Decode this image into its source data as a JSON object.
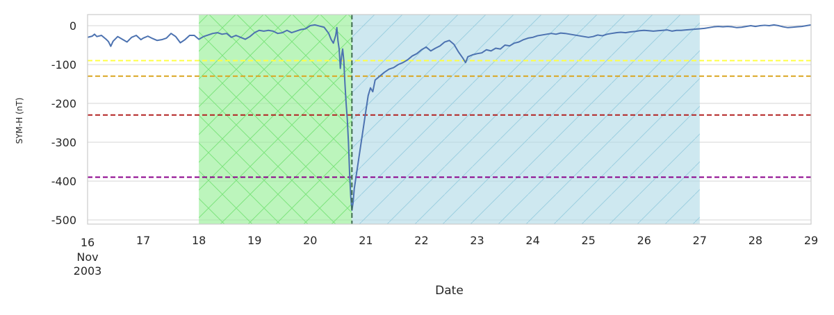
{
  "chart_data": {
    "type": "line",
    "title": "",
    "xlabel": "Date",
    "ylabel": "SYM-H (nT)",
    "x_range": [
      "2003-11-16",
      "2003-11-29"
    ],
    "ylim": [
      -512,
      28
    ],
    "grid": true,
    "x_ticks": [
      {
        "date": "2003-11-16",
        "label": "16",
        "sub": [
          "Nov",
          "2003"
        ]
      },
      {
        "date": "2003-11-17",
        "label": "17"
      },
      {
        "date": "2003-11-18",
        "label": "18"
      },
      {
        "date": "2003-11-19",
        "label": "19"
      },
      {
        "date": "2003-11-20",
        "label": "20"
      },
      {
        "date": "2003-11-21",
        "label": "21"
      },
      {
        "date": "2003-11-22",
        "label": "22"
      },
      {
        "date": "2003-11-23",
        "label": "23"
      },
      {
        "date": "2003-11-24",
        "label": "24"
      },
      {
        "date": "2003-11-25",
        "label": "25"
      },
      {
        "date": "2003-11-26",
        "label": "26"
      },
      {
        "date": "2003-11-27",
        "label": "27"
      },
      {
        "date": "2003-11-28",
        "label": "28"
      },
      {
        "date": "2003-11-29",
        "label": "29"
      }
    ],
    "y_ticks": [
      {
        "value": 0,
        "label": "0"
      },
      {
        "value": -100,
        "label": "-100"
      },
      {
        "value": -200,
        "label": "-200"
      },
      {
        "value": -300,
        "label": "-300"
      },
      {
        "value": -400,
        "label": "-400"
      },
      {
        "value": -500,
        "label": "-500"
      }
    ],
    "shaded_regions": [
      {
        "start": "2003-11-18T00:00",
        "end": "2003-11-20T18:00",
        "color": "#90ee90",
        "opacity": 0.6,
        "hatch": "cross",
        "hatch_color": "#7ee47e"
      },
      {
        "start": "2003-11-20T18:00",
        "end": "2003-11-27T00:00",
        "color": "#add8e6",
        "opacity": 0.6,
        "hatch": "diagonal",
        "hatch_color": "#9ccfe0"
      }
    ],
    "vertical_lines": [
      {
        "x": "2003-11-20T18:00",
        "color": "#3f6b4f",
        "style": "dashed"
      }
    ],
    "threshold_lines": [
      {
        "y": -90,
        "color": "#ffff44"
      },
      {
        "y": -130,
        "color": "#daa520"
      },
      {
        "y": -230,
        "color": "#b22222"
      },
      {
        "y": -390,
        "color": "#8b008b"
      }
    ],
    "series": [
      {
        "color": "#4c72b0",
        "points": [
          [
            "2003-11-16T00:00",
            -30
          ],
          [
            "2003-11-16T02:00",
            -27
          ],
          [
            "2003-11-16T03:00",
            -22
          ],
          [
            "2003-11-16T04:00",
            -28
          ],
          [
            "2003-11-16T06:00",
            -25
          ],
          [
            "2003-11-16T08:00",
            -35
          ],
          [
            "2003-11-16T09:00",
            -41
          ],
          [
            "2003-11-16T10:00",
            -53
          ],
          [
            "2003-11-16T11:00",
            -40
          ],
          [
            "2003-11-16T13:00",
            -28
          ],
          [
            "2003-11-16T15:00",
            -35
          ],
          [
            "2003-11-16T17:00",
            -42
          ],
          [
            "2003-11-16T19:00",
            -30
          ],
          [
            "2003-11-16T21:00",
            -25
          ],
          [
            "2003-11-16T23:00",
            -36
          ],
          [
            "2003-11-17T00:00",
            -32
          ],
          [
            "2003-11-17T02:00",
            -27
          ],
          [
            "2003-11-17T04:00",
            -33
          ],
          [
            "2003-11-17T06:00",
            -38
          ],
          [
            "2003-11-17T08:00",
            -36
          ],
          [
            "2003-11-17T10:00",
            -32
          ],
          [
            "2003-11-17T12:00",
            -20
          ],
          [
            "2003-11-17T14:00",
            -28
          ],
          [
            "2003-11-17T16:00",
            -44
          ],
          [
            "2003-11-17T18:00",
            -36
          ],
          [
            "2003-11-17T20:00",
            -25
          ],
          [
            "2003-11-17T22:00",
            -25
          ],
          [
            "2003-11-18T00:00",
            -35
          ],
          [
            "2003-11-18T02:00",
            -28
          ],
          [
            "2003-11-18T04:00",
            -24
          ],
          [
            "2003-11-18T06:00",
            -20
          ],
          [
            "2003-11-18T08:00",
            -18
          ],
          [
            "2003-11-18T10:00",
            -22
          ],
          [
            "2003-11-18T12:00",
            -20
          ],
          [
            "2003-11-18T14:00",
            -30
          ],
          [
            "2003-11-18T16:00",
            -25
          ],
          [
            "2003-11-18T18:00",
            -30
          ],
          [
            "2003-11-18T20:00",
            -35
          ],
          [
            "2003-11-18T22:00",
            -28
          ],
          [
            "2003-11-19T00:00",
            -18
          ],
          [
            "2003-11-19T02:00",
            -12
          ],
          [
            "2003-11-19T04:00",
            -14
          ],
          [
            "2003-11-19T06:00",
            -12
          ],
          [
            "2003-11-19T08:00",
            -14
          ],
          [
            "2003-11-19T10:00",
            -20
          ],
          [
            "2003-11-19T12:00",
            -18
          ],
          [
            "2003-11-19T14:00",
            -12
          ],
          [
            "2003-11-19T16:00",
            -18
          ],
          [
            "2003-11-19T18:00",
            -14
          ],
          [
            "2003-11-19T20:00",
            -10
          ],
          [
            "2003-11-19T22:00",
            -8
          ],
          [
            "2003-11-20T00:00",
            0
          ],
          [
            "2003-11-20T02:00",
            2
          ],
          [
            "2003-11-20T04:00",
            -1
          ],
          [
            "2003-11-20T06:00",
            -4
          ],
          [
            "2003-11-20T08:00",
            -20
          ],
          [
            "2003-11-20T09:00",
            -35
          ],
          [
            "2003-11-20T10:00",
            -45
          ],
          [
            "2003-11-20T11:00",
            -25
          ],
          [
            "2003-11-20T11:30",
            -5
          ],
          [
            "2003-11-20T12:00",
            -40
          ],
          [
            "2003-11-20T12:30",
            -60
          ],
          [
            "2003-11-20T13:00",
            -110
          ],
          [
            "2003-11-20T13:30",
            -80
          ],
          [
            "2003-11-20T14:00",
            -60
          ],
          [
            "2003-11-20T14:30",
            -90
          ],
          [
            "2003-11-20T15:00",
            -150
          ],
          [
            "2003-11-20T15:30",
            -200
          ],
          [
            "2003-11-20T16:00",
            -240
          ],
          [
            "2003-11-20T16:30",
            -300
          ],
          [
            "2003-11-20T17:00",
            -380
          ],
          [
            "2003-11-20T17:30",
            -440
          ],
          [
            "2003-11-20T18:00",
            -475
          ],
          [
            "2003-11-20T18:30",
            -455
          ],
          [
            "2003-11-20T19:00",
            -420
          ],
          [
            "2003-11-20T19:30",
            -400
          ],
          [
            "2003-11-20T20:00",
            -380
          ],
          [
            "2003-11-20T21:00",
            -340
          ],
          [
            "2003-11-20T22:00",
            -300
          ],
          [
            "2003-11-20T23:00",
            -260
          ],
          [
            "2003-11-21T00:00",
            -220
          ],
          [
            "2003-11-21T01:00",
            -180
          ],
          [
            "2003-11-21T02:00",
            -160
          ],
          [
            "2003-11-21T03:00",
            -170
          ],
          [
            "2003-11-21T04:00",
            -140
          ],
          [
            "2003-11-21T06:00",
            -130
          ],
          [
            "2003-11-21T08:00",
            -120
          ],
          [
            "2003-11-21T10:00",
            -112
          ],
          [
            "2003-11-21T12:00",
            -108
          ],
          [
            "2003-11-21T14:00",
            -100
          ],
          [
            "2003-11-21T16:00",
            -95
          ],
          [
            "2003-11-21T18:00",
            -88
          ],
          [
            "2003-11-21T20:00",
            -78
          ],
          [
            "2003-11-21T22:00",
            -72
          ],
          [
            "2003-11-22T00:00",
            -62
          ],
          [
            "2003-11-22T02:00",
            -55
          ],
          [
            "2003-11-22T04:00",
            -65
          ],
          [
            "2003-11-22T06:00",
            -58
          ],
          [
            "2003-11-22T08:00",
            -52
          ],
          [
            "2003-11-22T10:00",
            -42
          ],
          [
            "2003-11-22T12:00",
            -38
          ],
          [
            "2003-11-22T14:00",
            -48
          ],
          [
            "2003-11-22T16:00",
            -68
          ],
          [
            "2003-11-22T18:00",
            -85
          ],
          [
            "2003-11-22T19:00",
            -95
          ],
          [
            "2003-11-22T20:00",
            -80
          ],
          [
            "2003-11-22T22:00",
            -75
          ],
          [
            "2003-11-23T00:00",
            -72
          ],
          [
            "2003-11-23T02:00",
            -70
          ],
          [
            "2003-11-23T04:00",
            -62
          ],
          [
            "2003-11-23T06:00",
            -65
          ],
          [
            "2003-11-23T08:00",
            -58
          ],
          [
            "2003-11-23T10:00",
            -60
          ],
          [
            "2003-11-23T12:00",
            -50
          ],
          [
            "2003-11-23T14:00",
            -52
          ],
          [
            "2003-11-23T16:00",
            -45
          ],
          [
            "2003-11-23T18:00",
            -42
          ],
          [
            "2003-11-23T20:00",
            -36
          ],
          [
            "2003-11-23T22:00",
            -32
          ],
          [
            "2003-11-24T00:00",
            -30
          ],
          [
            "2003-11-24T02:00",
            -26
          ],
          [
            "2003-11-24T04:00",
            -24
          ],
          [
            "2003-11-24T06:00",
            -22
          ],
          [
            "2003-11-24T08:00",
            -20
          ],
          [
            "2003-11-24T10:00",
            -22
          ],
          [
            "2003-11-24T12:00",
            -19
          ],
          [
            "2003-11-24T14:00",
            -20
          ],
          [
            "2003-11-24T16:00",
            -22
          ],
          [
            "2003-11-24T18:00",
            -24
          ],
          [
            "2003-11-24T20:00",
            -26
          ],
          [
            "2003-11-24T22:00",
            -28
          ],
          [
            "2003-11-25T00:00",
            -30
          ],
          [
            "2003-11-25T02:00",
            -28
          ],
          [
            "2003-11-25T04:00",
            -24
          ],
          [
            "2003-11-25T06:00",
            -26
          ],
          [
            "2003-11-25T08:00",
            -22
          ],
          [
            "2003-11-25T10:00",
            -20
          ],
          [
            "2003-11-25T12:00",
            -18
          ],
          [
            "2003-11-25T14:00",
            -17
          ],
          [
            "2003-11-25T16:00",
            -18
          ],
          [
            "2003-11-25T18:00",
            -16
          ],
          [
            "2003-11-25T20:00",
            -15
          ],
          [
            "2003-11-25T22:00",
            -13
          ],
          [
            "2003-11-26T00:00",
            -12
          ],
          [
            "2003-11-26T02:00",
            -13
          ],
          [
            "2003-11-26T04:00",
            -14
          ],
          [
            "2003-11-26T06:00",
            -13
          ],
          [
            "2003-11-26T08:00",
            -12
          ],
          [
            "2003-11-26T10:00",
            -11
          ],
          [
            "2003-11-26T12:00",
            -14
          ],
          [
            "2003-11-26T14:00",
            -12
          ],
          [
            "2003-11-26T16:00",
            -12
          ],
          [
            "2003-11-26T18:00",
            -11
          ],
          [
            "2003-11-26T20:00",
            -10
          ],
          [
            "2003-11-26T22:00",
            -9
          ],
          [
            "2003-11-27T00:00",
            -8
          ],
          [
            "2003-11-27T02:00",
            -7
          ],
          [
            "2003-11-27T04:00",
            -5
          ],
          [
            "2003-11-27T06:00",
            -3
          ],
          [
            "2003-11-27T08:00",
            -2
          ],
          [
            "2003-11-27T10:00",
            -3
          ],
          [
            "2003-11-27T12:00",
            -2
          ],
          [
            "2003-11-27T14:00",
            -3
          ],
          [
            "2003-11-27T16:00",
            -5
          ],
          [
            "2003-11-27T18:00",
            -4
          ],
          [
            "2003-11-27T20:00",
            -2
          ],
          [
            "2003-11-27T22:00",
            0
          ],
          [
            "2003-11-28T00:00",
            -2
          ],
          [
            "2003-11-28T02:00",
            0
          ],
          [
            "2003-11-28T04:00",
            1
          ],
          [
            "2003-11-28T06:00",
            0
          ],
          [
            "2003-11-28T08:00",
            2
          ],
          [
            "2003-11-28T10:00",
            0
          ],
          [
            "2003-11-28T12:00",
            -3
          ],
          [
            "2003-11-28T14:00",
            -5
          ],
          [
            "2003-11-28T16:00",
            -4
          ],
          [
            "2003-11-28T18:00",
            -3
          ],
          [
            "2003-11-28T20:00",
            -2
          ],
          [
            "2003-11-28T22:00",
            0
          ],
          [
            "2003-11-29T00:00",
            2
          ]
        ]
      }
    ]
  }
}
